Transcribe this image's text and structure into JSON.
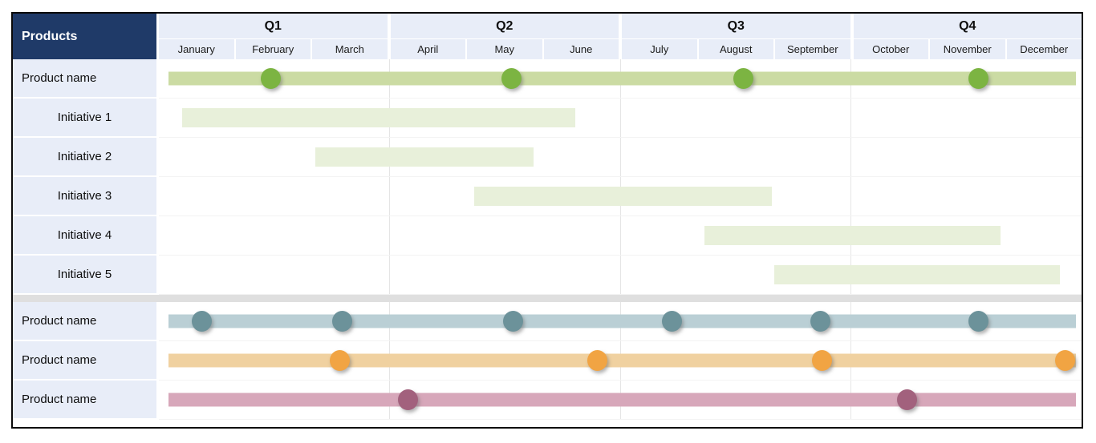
{
  "header": {
    "products_label": "Products",
    "quarters": [
      "Q1",
      "Q2",
      "Q3",
      "Q4"
    ],
    "months": [
      "January",
      "February",
      "March",
      "April",
      "May",
      "June",
      "July",
      "August",
      "September",
      "October",
      "November",
      "December"
    ]
  },
  "colors": {
    "header_navy": "#1F3A68",
    "header_light_blue": "#E8EDF8",
    "label_cell_blue": "#E8EDF8",
    "separator_gray": "#DFDFDF",
    "quarter_gridline": "#E5E5E5",
    "product_green_bar": "#CBDBA3",
    "product_green_dot": "#7CB442",
    "initiative_bar": "#E8F0DA",
    "teal_bar": "#BACFD5",
    "teal_dot": "#6C929A",
    "orange_bar": "#F0D1A0",
    "orange_dot": "#F1A443",
    "pink_bar": "#D7A7BA",
    "pink_dot": "#A2617D"
  },
  "chart_data": {
    "type": "gantt",
    "title": "Products",
    "x_axis": {
      "unit": "month",
      "min": 0,
      "max": 12,
      "tick_labels": [
        "January",
        "February",
        "March",
        "April",
        "May",
        "June",
        "July",
        "August",
        "September",
        "October",
        "November",
        "December"
      ],
      "group_labels": [
        "Q1",
        "Q2",
        "Q3",
        "Q4"
      ],
      "gridlines_at_quarters": true
    },
    "rows": [
      {
        "label": "Product name",
        "group": "product",
        "bar": {
          "start": 0.12,
          "end": 11.93
        },
        "bar_color": "#CBDBA3",
        "dot_color": "#7CB442",
        "milestones": [
          1.45,
          4.58,
          7.6,
          10.65
        ]
      },
      {
        "label": "Initiative 1",
        "group": "initiative",
        "bar": {
          "start": 0.3,
          "end": 5.42
        },
        "bar_color": "#E8F0DA",
        "milestones": []
      },
      {
        "label": "Initiative 2",
        "group": "initiative",
        "bar": {
          "start": 2.03,
          "end": 4.87
        },
        "bar_color": "#E8F0DA",
        "milestones": []
      },
      {
        "label": "Initiative 3",
        "group": "initiative",
        "bar": {
          "start": 4.1,
          "end": 7.97
        },
        "bar_color": "#E8F0DA",
        "milestones": []
      },
      {
        "label": "Initiative 4",
        "group": "initiative",
        "bar": {
          "start": 7.1,
          "end": 10.95
        },
        "bar_color": "#E8F0DA",
        "milestones": []
      },
      {
        "label": "Initiative 5",
        "group": "initiative",
        "bar": {
          "start": 8.0,
          "end": 11.72
        },
        "bar_color": "#E8F0DA",
        "milestones": []
      },
      {
        "separator_before": true,
        "label": "Product name",
        "group": "product",
        "bar": {
          "start": 0.12,
          "end": 11.93
        },
        "bar_color": "#BACFD5",
        "dot_color": "#6C929A",
        "milestones": [
          0.55,
          2.38,
          4.6,
          6.67,
          8.6,
          10.65
        ]
      },
      {
        "label": "Product name",
        "group": "product",
        "bar": {
          "start": 0.12,
          "end": 11.93
        },
        "bar_color": "#F0D1A0",
        "dot_color": "#F1A443",
        "milestones": [
          2.35,
          5.7,
          8.62,
          11.78
        ]
      },
      {
        "label": "Product name",
        "group": "product",
        "bar": {
          "start": 0.12,
          "end": 11.93
        },
        "bar_color": "#D7A7BA",
        "dot_color": "#A2617D",
        "milestones": [
          3.23,
          9.72
        ]
      }
    ]
  }
}
